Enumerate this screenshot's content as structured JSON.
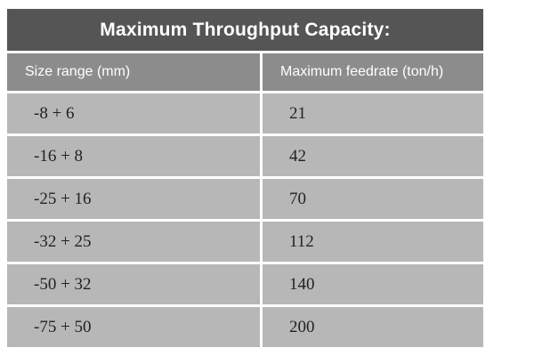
{
  "table": {
    "title": "Maximum Throughput Capacity:",
    "header": [
      "Size range (mm)",
      "Maximum feedrate (ton/h)"
    ],
    "rows": [
      [
        "-8 + 6",
        "21"
      ],
      [
        "-16 + 8",
        "42"
      ],
      [
        "-25 + 16",
        "70"
      ],
      [
        "-32 + 25",
        "112"
      ],
      [
        "-50 + 32",
        "140"
      ],
      [
        "-75 + 50",
        "200"
      ]
    ]
  }
}
